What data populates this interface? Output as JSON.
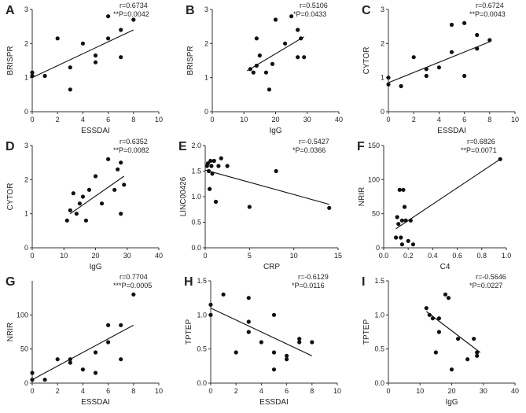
{
  "chart_data": [
    {
      "panel": "A",
      "type": "scatter",
      "xlabel": "ESSDAI",
      "ylabel": "BRISPR",
      "xlim": [
        0,
        10
      ],
      "ylim": [
        0,
        3
      ],
      "xticks": [
        0,
        2,
        4,
        6,
        8,
        10
      ],
      "yticks": [
        0,
        1,
        2,
        3
      ],
      "r_text": "r=0.6734",
      "p_text": "**P=0.0042",
      "x": [
        0,
        0,
        1,
        2,
        3,
        3,
        4,
        5,
        5,
        6,
        6,
        7,
        7,
        8
      ],
      "y": [
        1.15,
        1.05,
        1.05,
        2.15,
        1.3,
        0.65,
        2.0,
        1.65,
        1.45,
        2.8,
        2.15,
        2.4,
        1.6,
        2.7
      ],
      "fit": {
        "x": [
          0,
          8
        ],
        "y": [
          1.0,
          2.4
        ]
      }
    },
    {
      "panel": "B",
      "type": "scatter",
      "xlabel": "IgG",
      "ylabel": "BRISPR",
      "xlim": [
        0,
        40
      ],
      "ylim": [
        0,
        3
      ],
      "xticks": [
        0,
        10,
        20,
        30,
        40
      ],
      "yticks": [
        0,
        1,
        2,
        3
      ],
      "r_text": "r=0.5106",
      "p_text": "*P=0.0433",
      "x": [
        12,
        13,
        14,
        14,
        15,
        17,
        18,
        19,
        20,
        23,
        25,
        27,
        27,
        28,
        29
      ],
      "y": [
        1.25,
        1.15,
        2.15,
        1.35,
        1.65,
        1.15,
        0.65,
        1.4,
        2.7,
        2.0,
        2.8,
        2.4,
        1.6,
        2.15,
        1.6
      ],
      "fit": {
        "x": [
          11,
          29
        ],
        "y": [
          1.2,
          2.2
        ]
      }
    },
    {
      "panel": "C",
      "type": "scatter",
      "xlabel": "ESSDAI",
      "ylabel": "CYTOR",
      "xlim": [
        0,
        10
      ],
      "ylim": [
        0,
        3
      ],
      "xticks": [
        0,
        2,
        4,
        6,
        8,
        10
      ],
      "yticks": [
        0,
        1,
        2,
        3
      ],
      "r_text": "r=0.6724",
      "p_text": "**P=0.0043",
      "x": [
        0,
        0,
        1,
        2,
        3,
        3,
        4,
        5,
        5,
        6,
        6,
        7,
        7,
        8
      ],
      "y": [
        0.8,
        1.0,
        0.75,
        1.6,
        1.05,
        1.25,
        1.3,
        2.55,
        1.75,
        2.6,
        1.05,
        2.25,
        1.85,
        2.1
      ],
      "fit": {
        "x": [
          0,
          8
        ],
        "y": [
          0.85,
          2.05
        ]
      }
    },
    {
      "panel": "D",
      "type": "scatter",
      "xlabel": "IgG",
      "ylabel": "CYTOR",
      "xlim": [
        0,
        40
      ],
      "ylim": [
        0,
        3
      ],
      "xticks": [
        0,
        10,
        20,
        30,
        40
      ],
      "yticks": [
        0,
        1,
        2,
        3
      ],
      "r_text": "r=0.6352",
      "p_text": "**P=0.0082",
      "x": [
        11,
        12,
        13,
        14,
        15,
        16,
        17,
        18,
        20,
        22,
        24,
        26,
        27,
        28,
        28,
        29
      ],
      "y": [
        0.8,
        1.1,
        1.6,
        1.0,
        1.3,
        1.5,
        0.8,
        1.7,
        2.1,
        1.3,
        2.6,
        1.7,
        2.3,
        2.5,
        1.0,
        1.85
      ],
      "fit": {
        "x": [
          12,
          29
        ],
        "y": [
          1.0,
          2.1
        ]
      }
    },
    {
      "panel": "E",
      "type": "scatter",
      "xlabel": "CRP",
      "ylabel": "LINC00426",
      "xlim": [
        0,
        15
      ],
      "ylim": [
        0,
        2.0
      ],
      "xticks": [
        0,
        5,
        10,
        15
      ],
      "yticks": [
        0.0,
        0.5,
        1.0,
        1.5,
        2.0
      ],
      "r_text": "r=-0.5427",
      "p_text": "*P=0.0366",
      "x": [
        0.2,
        0.3,
        0.4,
        0.5,
        0.6,
        0.7,
        0.8,
        1.0,
        1.2,
        1.5,
        1.8,
        2.5,
        5,
        8,
        14
      ],
      "y": [
        1.6,
        1.65,
        1.5,
        1.15,
        1.7,
        1.6,
        1.45,
        1.7,
        0.9,
        1.6,
        1.75,
        1.6,
        0.8,
        1.5,
        0.78
      ],
      "fit": {
        "x": [
          0,
          14
        ],
        "y": [
          1.52,
          0.85
        ]
      }
    },
    {
      "panel": "F",
      "type": "scatter",
      "xlabel": "C4",
      "ylabel": "NRIR",
      "xlim": [
        0,
        1.0
      ],
      "ylim": [
        0,
        150
      ],
      "xticks": [
        0.0,
        0.2,
        0.4,
        0.6,
        0.8,
        1.0
      ],
      "yticks": [
        0,
        50,
        100,
        150
      ],
      "r_text": "r=0.6826",
      "p_text": "**P=0.0071",
      "x": [
        0.1,
        0.11,
        0.12,
        0.13,
        0.14,
        0.15,
        0.15,
        0.16,
        0.17,
        0.18,
        0.2,
        0.22,
        0.24,
        0.95
      ],
      "y": [
        15,
        45,
        35,
        85,
        15,
        5,
        40,
        85,
        60,
        40,
        10,
        40,
        5,
        130
      ],
      "fit": {
        "x": [
          0.1,
          0.95
        ],
        "y": [
          28,
          130
        ]
      }
    },
    {
      "panel": "G",
      "type": "scatter",
      "xlabel": "ESSDAI",
      "ylabel": "NRIR",
      "xlim": [
        0,
        10
      ],
      "ylim": [
        0,
        150
      ],
      "xticks": [
        0,
        2,
        4,
        6,
        8,
        10
      ],
      "yticks": [
        0,
        50,
        100
      ],
      "r_text": "r=0.7704",
      "p_text": "***P=0.0005",
      "x": [
        0,
        0,
        1,
        2,
        3,
        3,
        4,
        5,
        5,
        6,
        6,
        7,
        7,
        8
      ],
      "y": [
        15,
        5,
        5,
        35,
        35,
        30,
        20,
        45,
        15,
        85,
        60,
        85,
        35,
        130
      ],
      "fit": {
        "x": [
          0,
          8
        ],
        "y": [
          5,
          85
        ]
      }
    },
    {
      "panel": "H",
      "type": "scatter",
      "xlabel": "ESSDAI",
      "ylabel": "TPTEP",
      "xlim": [
        0,
        10
      ],
      "ylim": [
        0,
        1.5
      ],
      "xticks": [
        0,
        2,
        4,
        6,
        8,
        10
      ],
      "yticks": [
        0.0,
        0.5,
        1.0,
        1.5
      ],
      "r_text": "r=-0.6129",
      "p_text": "*P=0.0116",
      "x": [
        0,
        0,
        1,
        2,
        3,
        3,
        3,
        4,
        5,
        5,
        5,
        6,
        6,
        7,
        7,
        8
      ],
      "y": [
        1.15,
        1.0,
        1.3,
        0.45,
        1.25,
        0.9,
        0.75,
        0.6,
        1.0,
        0.45,
        0.2,
        0.35,
        0.4,
        0.65,
        0.6,
        0.6
      ],
      "fit": {
        "x": [
          0,
          8
        ],
        "y": [
          1.1,
          0.4
        ]
      }
    },
    {
      "panel": "I",
      "type": "scatter",
      "xlabel": "IgG",
      "ylabel": "TPTEP",
      "xlim": [
        0,
        40
      ],
      "ylim": [
        0,
        1.5
      ],
      "xticks": [
        0,
        10,
        20,
        30,
        40
      ],
      "yticks": [
        0.0,
        0.5,
        1.0,
        1.5
      ],
      "r_text": "r=-0.5646",
      "p_text": "*P=0.0227",
      "x": [
        12,
        13,
        14,
        15,
        16,
        16,
        18,
        19,
        20,
        22,
        25,
        27,
        28,
        28
      ],
      "y": [
        1.1,
        1.0,
        0.95,
        0.45,
        0.75,
        0.95,
        1.3,
        1.25,
        0.2,
        0.65,
        0.35,
        0.65,
        0.45,
        0.4
      ],
      "fit": {
        "x": [
          12,
          29
        ],
        "y": [
          1.05,
          0.45
        ]
      }
    }
  ]
}
